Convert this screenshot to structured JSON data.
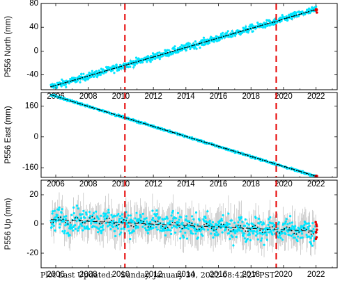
{
  "footer": {
    "label": "Plot Last Updated:",
    "timestamp": "Sunday, January 30, 2022 08:42:27 PST"
  },
  "colors": {
    "data_points": "#00e5ff",
    "error_bars": "#b0b0b0",
    "trend_line": "#000000",
    "event_lines": "#e60000",
    "recent_points": "#e60000"
  },
  "chart_data": [
    {
      "type": "scatter",
      "component": "north",
      "ylabel": "P556 North (mm)",
      "xlim": [
        2005.1,
        2023.3
      ],
      "ylim": [
        -65,
        80
      ],
      "xticks": [
        2006,
        2008,
        2010,
        2012,
        2014,
        2016,
        2018,
        2020,
        2022
      ],
      "yticks": [
        -40,
        0,
        40,
        80
      ],
      "event_lines_x": [
        2010.25,
        2019.55
      ],
      "trend_line": {
        "x": [
          2005.7,
          2022.05
        ],
        "y": [
          -60,
          70
        ]
      },
      "series": [
        {
          "x": [
            2005.7,
            2007.0,
            2008.0,
            2009.0,
            2010.0,
            2011.0,
            2012.0,
            2013.0,
            2014.0,
            2015.0,
            2016.0,
            2017.0,
            2018.0,
            2019.0,
            2019.55,
            2020.0,
            2021.0,
            2022.0
          ],
          "y": [
            -60,
            -50,
            -42,
            -34,
            -26,
            -18,
            -10,
            -2,
            6,
            14,
            22,
            30,
            38,
            46,
            49,
            54,
            62,
            70
          ]
        }
      ]
    },
    {
      "type": "scatter",
      "component": "east",
      "ylabel": "P556 East (mm)",
      "xlim": [
        2005.1,
        2023.3
      ],
      "ylim": [
        -210,
        230
      ],
      "xticks": [
        2006,
        2008,
        2010,
        2012,
        2014,
        2016,
        2018,
        2020,
        2022
      ],
      "yticks": [
        -160,
        0,
        160
      ],
      "event_lines_x": [
        2010.25,
        2019.55
      ],
      "trend_line": {
        "x": [
          2005.7,
          2022.05
        ],
        "y": [
          218,
          -205
        ]
      },
      "series": [
        {
          "x": [
            2005.7,
            2008.0,
            2010.0,
            2012.0,
            2014.0,
            2016.0,
            2018.0,
            2020.0,
            2022.0
          ],
          "y": [
            218,
            158,
            106,
            54,
            2,
            -50,
            -102,
            -154,
            -205
          ]
        }
      ]
    },
    {
      "type": "scatter",
      "component": "up",
      "ylabel": "P556 Up (mm)",
      "xlim": [
        2005.1,
        2023.3
      ],
      "ylim": [
        -30,
        30
      ],
      "xticks": [
        2006,
        2008,
        2010,
        2012,
        2014,
        2016,
        2018,
        2020,
        2022
      ],
      "yticks": [
        -20,
        0,
        20
      ],
      "event_lines_x": [
        2010.25,
        2019.55
      ],
      "trend_line": {
        "x": [
          2005.7,
          2022.05
        ],
        "y": [
          3,
          -5
        ]
      },
      "series": [
        {
          "x": [
            2005.7,
            2007.0,
            2008.0,
            2009.0,
            2010.0,
            2011.0,
            2012.0,
            2013.0,
            2014.0,
            2015.0,
            2016.0,
            2017.0,
            2018.0,
            2019.0,
            2020.0,
            2021.0,
            2022.0
          ],
          "y": [
            3,
            2,
            3,
            2,
            1,
            0,
            0,
            -1,
            -1,
            -2,
            -2,
            -3,
            -3,
            -4,
            -4,
            -5,
            -5
          ]
        }
      ]
    }
  ]
}
